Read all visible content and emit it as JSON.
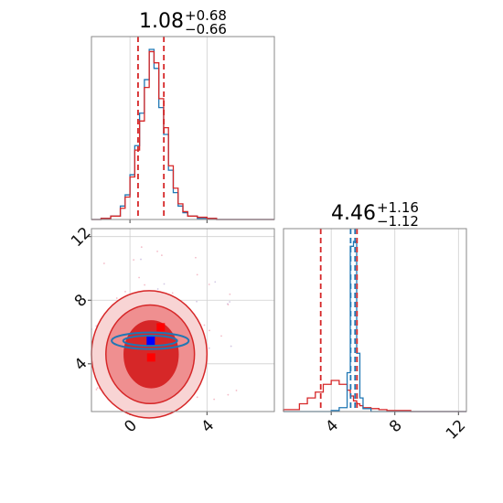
{
  "chart_data": {
    "type": "corner",
    "grid": true,
    "colors": {
      "series_a": "#d62728",
      "series_b": "#1f77b4",
      "truth_a": "#ff0000",
      "truth_b": "#0000ff"
    },
    "parameters": [
      {
        "title_value": "1.08",
        "title_plus": "+0.68",
        "title_minus": "−0.66",
        "range": [
          -2,
          7.5
        ],
        "ticks": [
          0,
          4
        ],
        "tick_labels": [
          "0",
          "4"
        ]
      },
      {
        "title_value": "4.46",
        "title_plus": "+1.16",
        "title_minus": "−1.12",
        "range": [
          1,
          12.5
        ],
        "ticks": [
          4,
          8,
          12
        ],
        "tick_labels": [
          "4",
          "8",
          "12"
        ]
      }
    ],
    "quantile_lines_a": {
      "p0": [
        0.42,
        1.76
      ],
      "p1": [
        3.34,
        5.62
      ]
    },
    "quantile_lines_b": {
      "p1": [
        5.22,
        5.5
      ]
    },
    "hist_p0": {
      "bins": [
        -2,
        -1.5,
        -1.0,
        -0.5,
        -0.25,
        0,
        0.25,
        0.5,
        0.75,
        1.0,
        1.25,
        1.5,
        1.75,
        2.0,
        2.25,
        2.5,
        2.75,
        3.0,
        3.5,
        4.0,
        4.5,
        5.0,
        7.5
      ],
      "series_a": [
        0,
        1,
        3,
        10,
        20,
        38,
        62,
        88,
        118,
        150,
        140,
        108,
        82,
        48,
        28,
        14,
        7,
        3,
        2,
        1,
        0,
        0
      ],
      "series_b": [
        0,
        1,
        3,
        12,
        22,
        40,
        66,
        95,
        125,
        152,
        135,
        100,
        76,
        44,
        24,
        12,
        6,
        3,
        1,
        1,
        0,
        0
      ]
    },
    "hist_p1": {
      "bins": [
        1,
        2,
        2.5,
        3,
        3.5,
        4,
        4.5,
        5,
        5.2,
        5.4,
        5.6,
        5.8,
        6,
        6.5,
        7,
        7.5,
        8,
        9,
        10,
        12.5
      ],
      "series_a": [
        2,
        8,
        14,
        20,
        28,
        32,
        28,
        22,
        16,
        11,
        8,
        6,
        4,
        3,
        2,
        1,
        1,
        0,
        0
      ],
      "series_b": [
        0,
        0,
        0,
        0,
        0,
        1,
        4,
        40,
        170,
        175,
        60,
        14,
        3,
        0,
        0,
        0,
        0,
        0,
        0
      ]
    },
    "contours_a": [
      {
        "center": [
          1.0,
          4.6
        ],
        "rx": 3.0,
        "ry": 4.0,
        "level": "outer"
      },
      {
        "center": [
          1.05,
          4.6
        ],
        "rx": 2.3,
        "ry": 3.1,
        "level": "middle"
      },
      {
        "center": [
          1.1,
          4.6
        ],
        "rx": 1.4,
        "ry": 2.1,
        "level": "inner"
      }
    ],
    "contours_b": [
      {
        "center": [
          1.05,
          5.45
        ],
        "rx": 2.0,
        "ry": 0.52
      },
      {
        "center": [
          1.05,
          5.45
        ],
        "rx": 1.4,
        "ry": 0.32
      }
    ],
    "truth_points": [
      {
        "x": 1.6,
        "y": 6.3,
        "series": "a"
      },
      {
        "x": 1.08,
        "y": 5.45,
        "series": "b"
      },
      {
        "x": 1.1,
        "y": 4.4,
        "series": "a"
      }
    ]
  }
}
